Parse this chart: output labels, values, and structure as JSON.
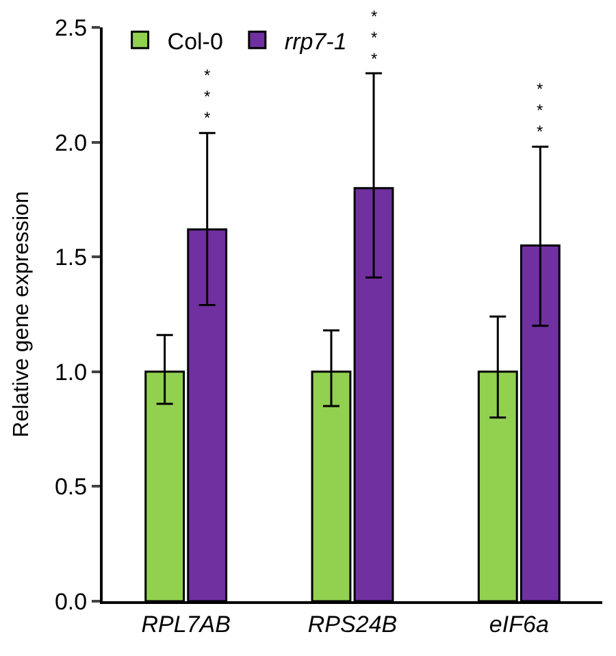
{
  "chart_data": {
    "type": "bar",
    "ylabel": "Relative gene expression",
    "categories": [
      "RPL7AB",
      "RPS24B",
      "eIF6a"
    ],
    "series": [
      {
        "name": "Col-0",
        "color": "#92d050",
        "values": [
          1.0,
          1.0,
          1.0
        ],
        "errors": [
          [
            0.86,
            1.16
          ],
          [
            0.85,
            1.18
          ],
          [
            0.8,
            1.24
          ]
        ]
      },
      {
        "name": "rrp7-1",
        "color": "#7030a0",
        "values": [
          1.62,
          1.8,
          1.55
        ],
        "errors": [
          [
            1.29,
            2.04
          ],
          [
            1.41,
            2.3
          ],
          [
            1.2,
            1.98
          ]
        ]
      }
    ],
    "ylim": [
      0,
      2.5
    ],
    "yticks": [
      {
        "value": 0,
        "label": "0.0"
      },
      0.5,
      {
        "value": 1,
        "label": "1.0"
      },
      1.5,
      {
        "value": 2,
        "label": "2.0"
      },
      2.5
    ],
    "annotations": [
      "***",
      "***",
      "***"
    ],
    "legend": "top left"
  }
}
